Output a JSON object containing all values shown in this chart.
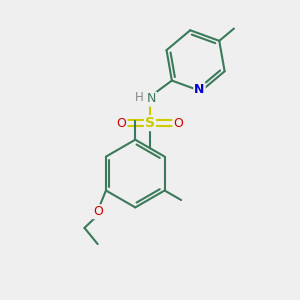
{
  "bg_color": "#efefef",
  "colors": {
    "bond": "#3a7a5a",
    "N": "#0000cc",
    "O": "#cc0000",
    "S": "#cccc00",
    "H": "#888888"
  },
  "bond_width": 1.5,
  "figsize": [
    3.0,
    3.0
  ],
  "dpi": 100
}
